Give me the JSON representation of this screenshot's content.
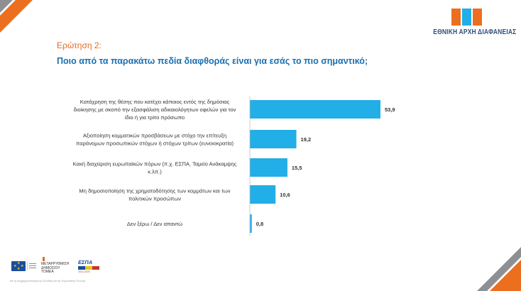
{
  "colors": {
    "bar": "#22aee6",
    "orange": "#ec6f1f",
    "grey": "#8e8f92",
    "logo_blue": "#2a4d79",
    "question_label": "#e36b1e",
    "question_text": "#1a6fb0"
  },
  "logo": {
    "icon": "eaa-logo-mark",
    "text": "ΕΘΝΙΚΗ ΑΡΧΗ ΔΙΑΦΑΝΕΙΑΣ"
  },
  "question": {
    "label": "Ερώτηση 2:",
    "text": "Ποιο από τα παρακάτω πεδία διαφθοράς είναι για εσάς το πιο σημαντικό;"
  },
  "chart_data": {
    "type": "bar",
    "orientation": "horizontal",
    "categories": [
      [
        "Κατάχρηση της θέσης που κατέχει κάποιος εντός της δημόσιας",
        "διοίκησης με σκοπό την εξασφάλιση αδικαιολόγητων οφελών για τον",
        "ίδιο ή για τρίτο πρόσωπο"
      ],
      [
        "Αξιοποίηση κομματικών προσβάσεων με στόχο την επίτευξη",
        "παράνομων προσωπικών στόχων ή στόχων τρίτων (ευνοιοκρατία)"
      ],
      [
        "Κακή διαχείριση ευρωπαϊκών πόρων (π.χ. ΕΣΠΑ, Ταμείο Ανάκαμψης",
        "κ.λπ.)"
      ],
      [
        "Μη δημοσιοποίηση της χρηματοδότησης των κομμάτων και των",
        "πολιτικών προσώπων"
      ],
      [
        "Δεν ξέρω / Δεν απαντώ"
      ]
    ],
    "values": [
      53.9,
      19.2,
      15.5,
      10.6,
      0.8
    ],
    "value_labels": [
      "53,9",
      "19,2",
      "15,5",
      "10,6",
      "0,8"
    ],
    "xlim": [
      0,
      53.9
    ],
    "grid": false,
    "legend": "none"
  },
  "footer": {
    "eu_icon": "eu-flag-icon",
    "meta_org": "ΜΕΤΑΡΡΥΘΜΙΣΗ\nΔΗΜΟΣΙΟΥ\nΤΟΜΕΑ",
    "espa_title": "ΕΣΠΑ",
    "espa_years": "2014-2020",
    "note": "Με τη συγχρηματοδότηση της Ελλάδας και της Ευρωπαϊκής Ένωσης"
  }
}
